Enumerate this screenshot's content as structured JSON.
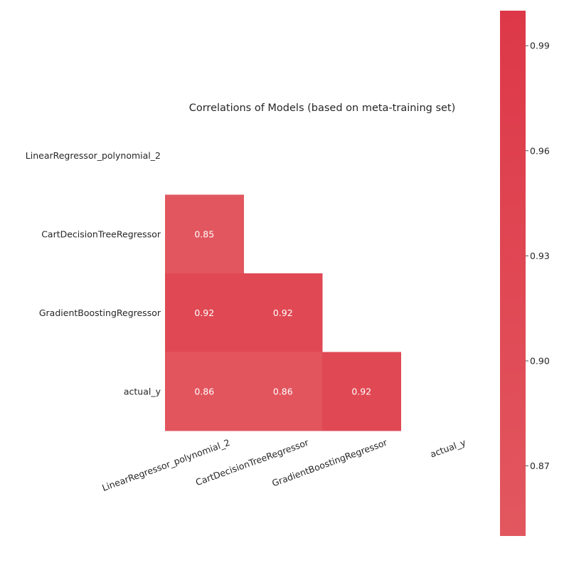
{
  "chart_data": {
    "type": "heatmap",
    "title": "Correlations of Models (based on meta-training set)",
    "rows": [
      "LinearRegressor_polynomial_2",
      "CartDecisionTreeRegressor",
      "GradientBoostingRegressor",
      "actual_y"
    ],
    "columns": [
      "LinearRegressor_polynomial_2",
      "CartDecisionTreeRegressor",
      "GradientBoostingRegressor",
      "actual_y"
    ],
    "mask": "upper triangle including diagonal",
    "cells": [
      {
        "row": "CartDecisionTreeRegressor",
        "column": "LinearRegressor_polynomial_2",
        "value": 0.85,
        "label": "0.85"
      },
      {
        "row": "GradientBoostingRegressor",
        "column": "LinearRegressor_polynomial_2",
        "value": 0.92,
        "label": "0.92"
      },
      {
        "row": "GradientBoostingRegressor",
        "column": "CartDecisionTreeRegressor",
        "value": 0.92,
        "label": "0.92"
      },
      {
        "row": "actual_y",
        "column": "LinearRegressor_polynomial_2",
        "value": 0.86,
        "label": "0.86"
      },
      {
        "row": "actual_y",
        "column": "CartDecisionTreeRegressor",
        "value": 0.86,
        "label": "0.86"
      },
      {
        "row": "actual_y",
        "column": "GradientBoostingRegressor",
        "value": 0.92,
        "label": "0.92"
      }
    ],
    "colorbar": {
      "range": [
        0.85,
        1.0
      ],
      "ticks": [
        {
          "value": 0.87,
          "label": "0.87"
        },
        {
          "value": 0.9,
          "label": "0.90"
        },
        {
          "value": 0.93,
          "label": "0.93"
        },
        {
          "value": 0.96,
          "label": "0.96"
        },
        {
          "value": 0.99,
          "label": "0.99"
        }
      ],
      "color_low": "#e2575f",
      "color_high": "#dd3848"
    },
    "grid": false,
    "colorbar_placement": "right"
  }
}
